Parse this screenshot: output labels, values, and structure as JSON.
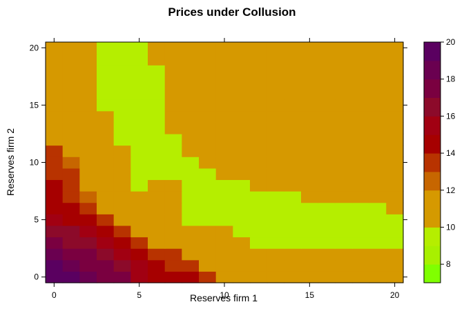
{
  "chart_data": {
    "type": "heatmap",
    "title": "Prices under Collusion",
    "xlabel": "Reserves firm 1",
    "ylabel": "Reserves firm 2",
    "xlim": [
      0,
      20
    ],
    "ylim": [
      0,
      20
    ],
    "xticks": [
      "0",
      "5",
      "10",
      "15",
      "20"
    ],
    "yticks": [
      "0",
      "5",
      "10",
      "15",
      "20"
    ],
    "colorbar": {
      "range": [
        7,
        20
      ],
      "ticks": [
        "8",
        "10",
        "12",
        "14",
        "16",
        "18",
        "20"
      ],
      "bins": [
        {
          "from": 7,
          "to": 8,
          "color": "#80ff00"
        },
        {
          "from": 8,
          "to": 9,
          "color": "#a8f000"
        },
        {
          "from": 9,
          "to": 10,
          "color": "#b5ee00"
        },
        {
          "from": 10,
          "to": 11,
          "color": "#d49a00"
        },
        {
          "from": 11,
          "to": 12,
          "color": "#d69900"
        },
        {
          "from": 12,
          "to": 13,
          "color": "#c76600"
        },
        {
          "from": 13,
          "to": 14,
          "color": "#b83300"
        },
        {
          "from": 14,
          "to": 15,
          "color": "#a60000"
        },
        {
          "from": 15,
          "to": 16,
          "color": "#a10012"
        },
        {
          "from": 16,
          "to": 17,
          "color": "#8c0a2a"
        },
        {
          "from": 17,
          "to": 18,
          "color": "#7a0040"
        },
        {
          "from": 18,
          "to": 19,
          "color": "#6a0050"
        },
        {
          "from": 19,
          "to": 20,
          "color": "#5a0060"
        }
      ]
    },
    "x": [
      0,
      1,
      2,
      3,
      4,
      5,
      6,
      7,
      8,
      9,
      10,
      11,
      12,
      13,
      14,
      15,
      16,
      17,
      18,
      19,
      20
    ],
    "y": [
      0,
      1,
      2,
      3,
      4,
      5,
      6,
      7,
      8,
      9,
      10,
      11,
      12,
      13,
      14,
      15,
      16,
      17,
      18,
      19,
      20
    ],
    "z_rows_note": "row index = y (0..20), column index = x (0..20)",
    "z": [
      [
        19,
        19,
        18,
        17,
        17,
        15,
        14,
        14,
        14,
        13,
        11,
        11,
        11,
        11,
        11,
        11,
        11,
        11,
        11,
        11,
        11
      ],
      [
        19,
        18,
        17,
        17,
        16,
        15,
        14,
        13,
        13,
        11,
        11,
        11,
        11,
        11,
        11,
        11,
        11,
        11,
        11,
        11,
        11
      ],
      [
        18,
        17,
        17,
        16,
        15,
        14,
        13,
        13,
        11,
        11,
        11,
        11,
        11,
        11,
        11,
        11,
        11,
        11,
        11,
        11,
        11
      ],
      [
        17,
        16,
        16,
        15,
        14,
        13,
        11,
        11,
        11,
        11,
        11,
        11,
        9,
        9,
        9,
        9,
        9,
        9,
        9,
        9,
        9
      ],
      [
        16,
        16,
        15,
        14,
        13,
        11,
        11,
        11,
        11,
        11,
        11,
        9,
        9,
        9,
        9,
        9,
        9,
        9,
        9,
        9,
        9
      ],
      [
        15,
        14,
        14,
        13,
        11,
        11,
        11,
        11,
        9,
        9,
        9,
        9,
        9,
        9,
        9,
        9,
        9,
        9,
        9,
        9,
        9
      ],
      [
        14,
        14,
        13,
        11,
        11,
        11,
        11,
        11,
        9,
        9,
        9,
        9,
        9,
        9,
        9,
        9,
        9,
        9,
        9,
        9,
        11
      ],
      [
        14,
        13,
        12,
        11,
        11,
        11,
        11,
        11,
        9,
        9,
        9,
        9,
        9,
        9,
        9,
        11,
        11,
        11,
        11,
        11,
        11
      ],
      [
        14,
        13,
        11,
        11,
        11,
        9,
        11,
        11,
        9,
        9,
        9,
        9,
        11,
        11,
        11,
        11,
        11,
        11,
        11,
        11,
        11
      ],
      [
        13,
        13,
        11,
        11,
        11,
        9,
        9,
        9,
        9,
        9,
        11,
        11,
        11,
        11,
        11,
        11,
        11,
        11,
        11,
        11,
        11
      ],
      [
        13,
        12,
        11,
        11,
        11,
        9,
        9,
        9,
        9,
        11,
        11,
        11,
        11,
        11,
        11,
        11,
        11,
        11,
        11,
        11,
        11
      ],
      [
        13,
        11,
        11,
        11,
        11,
        9,
        9,
        9,
        11,
        11,
        11,
        11,
        11,
        11,
        11,
        11,
        11,
        11,
        11,
        11,
        11
      ],
      [
        11,
        11,
        11,
        11,
        9,
        9,
        9,
        9,
        11,
        11,
        11,
        11,
        11,
        11,
        11,
        11,
        11,
        11,
        11,
        11,
        11
      ],
      [
        11,
        11,
        11,
        11,
        9,
        9,
        9,
        11,
        11,
        11,
        11,
        11,
        11,
        11,
        11,
        11,
        11,
        11,
        11,
        11,
        11
      ],
      [
        11,
        11,
        11,
        11,
        9,
        9,
        9,
        11,
        11,
        11,
        11,
        11,
        11,
        11,
        11,
        11,
        11,
        11,
        11,
        11,
        11
      ],
      [
        11,
        11,
        11,
        9,
        9,
        9,
        9,
        11,
        11,
        11,
        11,
        11,
        11,
        11,
        11,
        11,
        11,
        11,
        11,
        11,
        11
      ],
      [
        11,
        11,
        11,
        9,
        9,
        9,
        9,
        11,
        11,
        11,
        11,
        11,
        11,
        11,
        11,
        11,
        11,
        11,
        11,
        11,
        11
      ],
      [
        11,
        11,
        11,
        9,
        9,
        9,
        9,
        11,
        11,
        11,
        11,
        11,
        11,
        11,
        11,
        11,
        11,
        11,
        11,
        11,
        11
      ],
      [
        11,
        11,
        11,
        9,
        9,
        9,
        9,
        11,
        11,
        11,
        11,
        11,
        11,
        11,
        11,
        11,
        11,
        11,
        11,
        11,
        11
      ],
      [
        11,
        11,
        11,
        9,
        9,
        9,
        11,
        11,
        11,
        11,
        11,
        11,
        11,
        11,
        11,
        11,
        11,
        11,
        11,
        11,
        11
      ],
      [
        11,
        11,
        11,
        9,
        9,
        9,
        11,
        11,
        11,
        11,
        11,
        11,
        11,
        11,
        11,
        11,
        11,
        11,
        11,
        11,
        11
      ]
    ]
  }
}
